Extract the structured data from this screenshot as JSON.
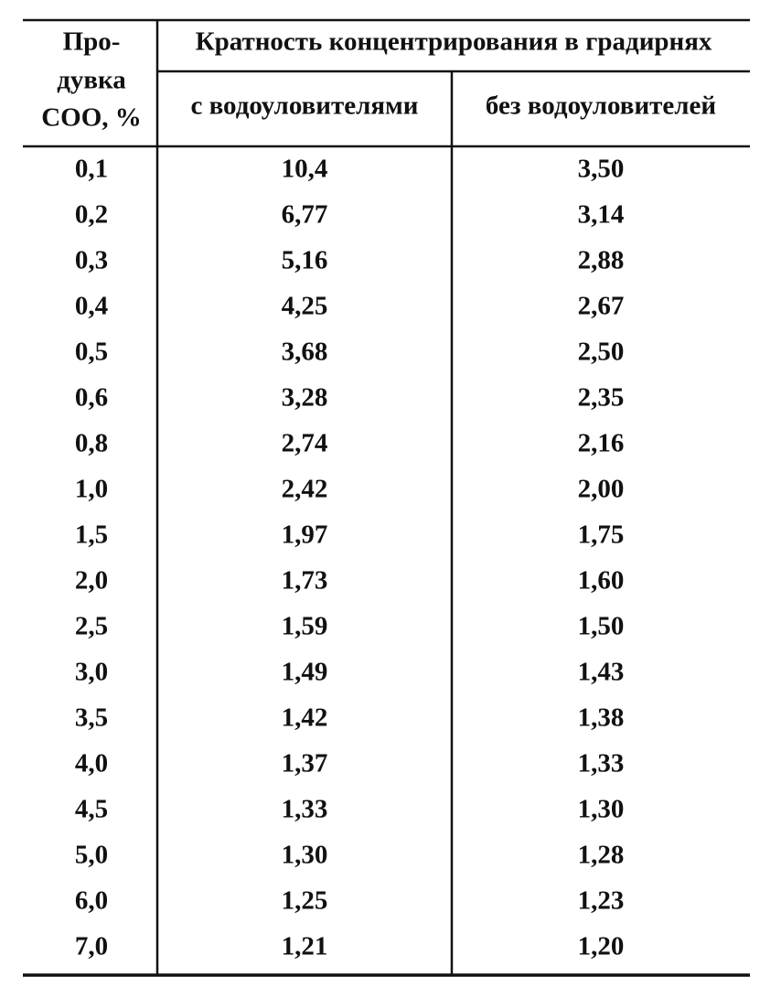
{
  "table": {
    "header": {
      "blowdown": [
        "Про-",
        "дувка",
        "СОО, %"
      ],
      "group": "Кратность концентрирования в градирнях",
      "columns": [
        "с водоуловителями",
        "без водоуловителей"
      ]
    },
    "rows": [
      [
        "0,1",
        "10,4",
        "3,50"
      ],
      [
        "0,2",
        "6,77",
        "3,14"
      ],
      [
        "0,3",
        "5,16",
        "2,88"
      ],
      [
        "0,4",
        "4,25",
        "2,67"
      ],
      [
        "0,5",
        "3,68",
        "2,50"
      ],
      [
        "0,6",
        "3,28",
        "2,35"
      ],
      [
        "0,8",
        "2,74",
        "2,16"
      ],
      [
        "1,0",
        "2,42",
        "2,00"
      ],
      [
        "1,5",
        "1,97",
        "1,75"
      ],
      [
        "2,0",
        "1,73",
        "1,60"
      ],
      [
        "2,5",
        "1,59",
        "1,50"
      ],
      [
        "3,0",
        "1,49",
        "1,43"
      ],
      [
        "3,5",
        "1,42",
        "1,38"
      ],
      [
        "4,0",
        "1,37",
        "1,33"
      ],
      [
        "4,5",
        "1,33",
        "1,30"
      ],
      [
        "5,0",
        "1,30",
        "1,28"
      ],
      [
        "6,0",
        "1,25",
        "1,23"
      ],
      [
        "7,0",
        "1,21",
        "1,20"
      ]
    ]
  }
}
